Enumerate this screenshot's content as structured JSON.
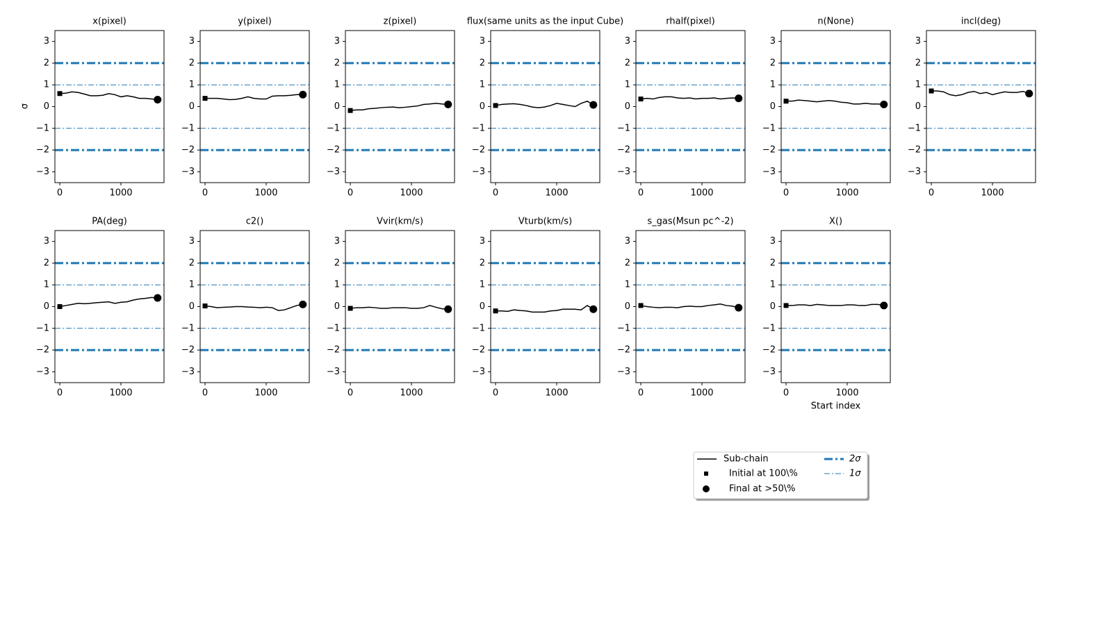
{
  "chart_data": [
    {
      "type": "line",
      "title": "x(pixel)",
      "x": [
        0,
        100,
        200,
        300,
        400,
        500,
        600,
        700,
        800,
        900,
        1000,
        1100,
        1200,
        1300,
        1400,
        1500,
        1600
      ],
      "values": [
        0.6,
        0.62,
        0.68,
        0.65,
        0.58,
        0.5,
        0.5,
        0.52,
        0.6,
        0.55,
        0.45,
        0.5,
        0.45,
        0.38,
        0.38,
        0.35,
        0.32
      ]
    },
    {
      "type": "line",
      "title": "y(pixel)",
      "x": [
        0,
        100,
        200,
        300,
        400,
        500,
        600,
        700,
        800,
        900,
        1000,
        1100,
        1200,
        1300,
        1400,
        1500,
        1600
      ],
      "values": [
        0.38,
        0.38,
        0.38,
        0.35,
        0.32,
        0.33,
        0.38,
        0.45,
        0.38,
        0.35,
        0.35,
        0.48,
        0.5,
        0.5,
        0.52,
        0.55,
        0.55
      ]
    },
    {
      "type": "line",
      "title": "z(pixel)",
      "x": [
        0,
        100,
        200,
        300,
        400,
        500,
        600,
        700,
        800,
        900,
        1000,
        1100,
        1200,
        1300,
        1400,
        1500,
        1600
      ],
      "values": [
        -0.18,
        -0.15,
        -0.15,
        -0.1,
        -0.08,
        -0.05,
        -0.03,
        -0.02,
        -0.05,
        -0.03,
        0,
        0.03,
        0.1,
        0.12,
        0.15,
        0.12,
        0.1
      ]
    },
    {
      "type": "line",
      "title": "flux(same units as the input Cube)",
      "x": [
        0,
        100,
        200,
        300,
        400,
        500,
        600,
        700,
        800,
        900,
        1000,
        1100,
        1200,
        1300,
        1400,
        1500,
        1600
      ],
      "values": [
        0.05,
        0.1,
        0.12,
        0.13,
        0.1,
        0.05,
        -0.02,
        -0.05,
        -0.02,
        0.05,
        0.15,
        0.1,
        0.05,
        0,
        0.15,
        0.25,
        0.08
      ]
    },
    {
      "type": "line",
      "title": "rhalf(pixel)",
      "x": [
        0,
        100,
        200,
        300,
        400,
        500,
        600,
        700,
        800,
        900,
        1000,
        1100,
        1200,
        1300,
        1400,
        1500,
        1600
      ],
      "values": [
        0.35,
        0.38,
        0.35,
        0.42,
        0.45,
        0.45,
        0.4,
        0.38,
        0.4,
        0.35,
        0.38,
        0.38,
        0.4,
        0.35,
        0.38,
        0.4,
        0.38
      ]
    },
    {
      "type": "line",
      "title": "n(None)",
      "x": [
        0,
        100,
        200,
        300,
        400,
        500,
        600,
        700,
        800,
        900,
        1000,
        1100,
        1200,
        1300,
        1400,
        1500,
        1600
      ],
      "values": [
        0.25,
        0.25,
        0.3,
        0.28,
        0.25,
        0.22,
        0.25,
        0.28,
        0.25,
        0.2,
        0.18,
        0.12,
        0.12,
        0.15,
        0.12,
        0.12,
        0.1
      ]
    },
    {
      "type": "line",
      "title": "incl(deg)",
      "x": [
        0,
        100,
        200,
        300,
        400,
        500,
        600,
        700,
        800,
        900,
        1000,
        1100,
        1200,
        1300,
        1400,
        1500,
        1600
      ],
      "values": [
        0.72,
        0.72,
        0.68,
        0.55,
        0.5,
        0.55,
        0.65,
        0.7,
        0.6,
        0.65,
        0.55,
        0.62,
        0.68,
        0.65,
        0.65,
        0.7,
        0.6
      ]
    },
    {
      "type": "line",
      "title": "PA(deg)",
      "x": [
        0,
        100,
        200,
        300,
        400,
        500,
        600,
        700,
        800,
        900,
        1000,
        1100,
        1200,
        1300,
        1400,
        1500,
        1600
      ],
      "values": [
        0,
        0.05,
        0.1,
        0.15,
        0.13,
        0.15,
        0.18,
        0.2,
        0.22,
        0.15,
        0.2,
        0.22,
        0.3,
        0.35,
        0.38,
        0.42,
        0.4
      ]
    },
    {
      "type": "line",
      "title": "c2()",
      "x": [
        0,
        100,
        200,
        300,
        400,
        500,
        600,
        700,
        800,
        900,
        1000,
        1100,
        1200,
        1300,
        1400,
        1500,
        1600
      ],
      "values": [
        0.03,
        0,
        -0.05,
        -0.03,
        -0.02,
        0,
        0,
        -0.02,
        -0.03,
        -0.05,
        -0.03,
        -0.05,
        -0.18,
        -0.15,
        -0.05,
        0.05,
        0.1
      ]
    },
    {
      "type": "line",
      "title": "Vvir(km/s)",
      "x": [
        0,
        100,
        200,
        300,
        400,
        500,
        600,
        700,
        800,
        900,
        1000,
        1100,
        1200,
        1300,
        1400,
        1500,
        1600
      ],
      "values": [
        -0.08,
        -0.05,
        -0.05,
        -0.03,
        -0.05,
        -0.08,
        -0.08,
        -0.05,
        -0.05,
        -0.05,
        -0.08,
        -0.08,
        -0.05,
        0.05,
        -0.03,
        -0.1,
        -0.12
      ]
    },
    {
      "type": "line",
      "title": "Vturb(km/s)",
      "x": [
        0,
        100,
        200,
        300,
        400,
        500,
        600,
        700,
        800,
        900,
        1000,
        1100,
        1200,
        1300,
        1400,
        1500,
        1600
      ],
      "values": [
        -0.2,
        -0.2,
        -0.22,
        -0.15,
        -0.18,
        -0.2,
        -0.25,
        -0.25,
        -0.25,
        -0.2,
        -0.18,
        -0.12,
        -0.12,
        -0.12,
        -0.15,
        0.05,
        -0.12
      ]
    },
    {
      "type": "line",
      "title": "s_gas(Msun pc^-2)",
      "x": [
        0,
        100,
        200,
        300,
        400,
        500,
        600,
        700,
        800,
        900,
        1000,
        1100,
        1200,
        1300,
        1400,
        1500,
        1600
      ],
      "values": [
        0.05,
        0,
        -0.03,
        -0.05,
        -0.03,
        -0.03,
        -0.05,
        0,
        0.02,
        0,
        0,
        0.05,
        0.08,
        0.12,
        0.05,
        0.02,
        -0.05
      ]
    },
    {
      "type": "line",
      "title": "X()",
      "x": [
        0,
        100,
        200,
        300,
        400,
        500,
        600,
        700,
        800,
        900,
        1000,
        1100,
        1200,
        1300,
        1400,
        1500,
        1600
      ],
      "values": [
        0.05,
        0.05,
        0.08,
        0.08,
        0.05,
        0.1,
        0.08,
        0.05,
        0.05,
        0.05,
        0.08,
        0.08,
        0.05,
        0.05,
        0.1,
        0.1,
        0.05
      ]
    }
  ],
  "axes": {
    "xlim": [
      -80,
      1705
    ],
    "ylim": [
      -3.5,
      3.5
    ],
    "xticks": [
      0,
      1000
    ],
    "yticks": [
      {
        "value": -3,
        "label": "−3"
      },
      {
        "value": -2,
        "label": "−2"
      },
      {
        "value": -1,
        "label": "−1"
      },
      0,
      1,
      2,
      3
    ],
    "ylabel": "σ",
    "xlabel": "Start index"
  },
  "series": [
    {
      "name": "Sub-chain",
      "color": "#000000"
    },
    {
      "name": "Initial at 100\\%",
      "color": "#000000"
    },
    {
      "name": "Final at >50\\%",
      "color": "#000000"
    }
  ],
  "sigma_lines": [
    {
      "name": "2σ",
      "color": "#1f77b4",
      "values": [
        2,
        -2
      ]
    },
    {
      "name": "1σ",
      "color": "#1f77b4",
      "values": [
        1,
        -1
      ]
    }
  ]
}
